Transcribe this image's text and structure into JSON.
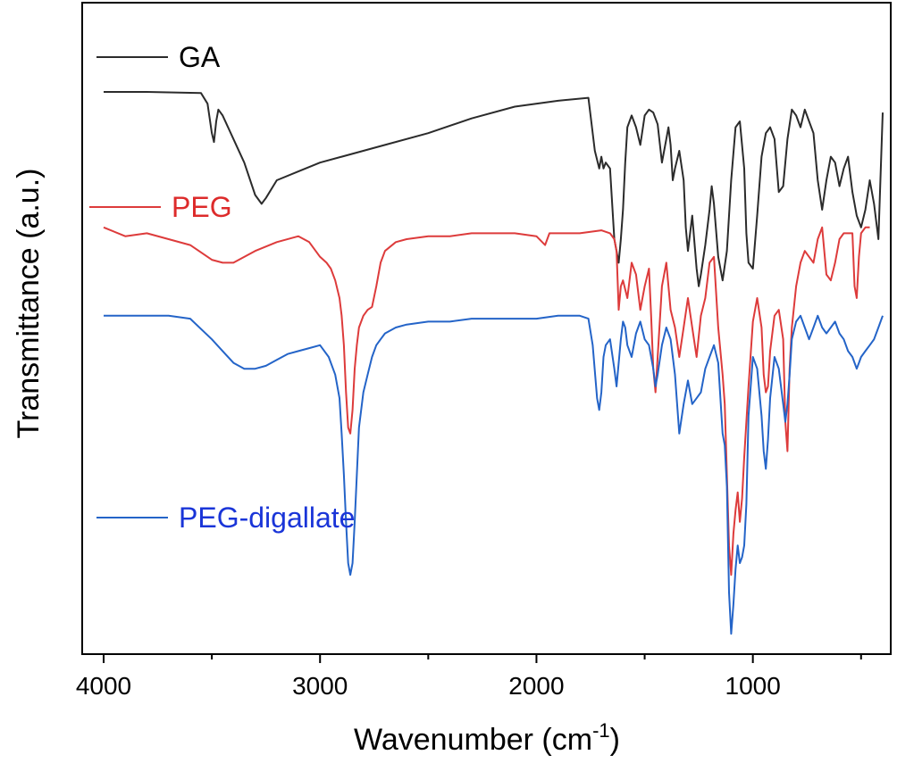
{
  "chart_data": {
    "type": "line",
    "title": "",
    "xlabel": "Wavenumber (cm",
    "xlabel_sup": "-1",
    "xlabel_close": ")",
    "ylabel": "Transmittance (a.u.)",
    "xlim": [
      4000,
      400
    ],
    "x_reversed": true,
    "ylim": [
      0,
      100
    ],
    "y_ticks_shown": false,
    "grid": false,
    "legend_placement": "inline-left",
    "x_ticks": [
      4000,
      3000,
      2000,
      1000
    ],
    "x_tick_labels": [
      "4000",
      "3000",
      "2000",
      "1000"
    ],
    "series": [
      {
        "name": "GA",
        "color": "#2b2b2b",
        "x": [
          4000,
          3800,
          3550,
          3520,
          3500,
          3490,
          3480,
          3470,
          3450,
          3400,
          3350,
          3300,
          3270,
          3250,
          3200,
          3100,
          3000,
          2900,
          2700,
          2500,
          2300,
          2100,
          1900,
          1760,
          1730,
          1710,
          1700,
          1690,
          1680,
          1660,
          1640,
          1620,
          1610,
          1600,
          1590,
          1580,
          1560,
          1540,
          1520,
          1500,
          1480,
          1460,
          1440,
          1420,
          1400,
          1390,
          1380,
          1370,
          1360,
          1340,
          1320,
          1310,
          1300,
          1280,
          1260,
          1250,
          1240,
          1220,
          1200,
          1190,
          1180,
          1160,
          1140,
          1120,
          1100,
          1080,
          1060,
          1040,
          1030,
          1020,
          1000,
          980,
          960,
          940,
          920,
          900,
          880,
          860,
          840,
          820,
          800,
          780,
          760,
          740,
          720,
          700,
          680,
          660,
          640,
          620,
          600,
          580,
          560,
          540,
          520,
          500,
          480,
          460,
          440,
          420,
          400
        ],
        "y": [
          95,
          95,
          94.8,
          93,
          88,
          86.5,
          90,
          92,
          91,
          87,
          83,
          77.5,
          76,
          77,
          80,
          81.5,
          83,
          84,
          86,
          88,
          90.5,
          92.5,
          93.5,
          94,
          85,
          82,
          84,
          82,
          83,
          82,
          70,
          66,
          70,
          75,
          83,
          89,
          91,
          89,
          86,
          91,
          92,
          91.5,
          89.5,
          83,
          87,
          89,
          86,
          80,
          82,
          85,
          80,
          72,
          68,
          74,
          65,
          62,
          64,
          69,
          75,
          79,
          76,
          67,
          63,
          68,
          80,
          89,
          90,
          82,
          71,
          66,
          65,
          74,
          84,
          88,
          89,
          87,
          78,
          79,
          87,
          92,
          91,
          89,
          92,
          90,
          88,
          80,
          75,
          80,
          84,
          83,
          79,
          82,
          84,
          78,
          74,
          72,
          75,
          80,
          76,
          70,
          91.5
        ]
      },
      {
        "name": "PEG",
        "color": "#dd3b3b",
        "x": [
          4000,
          3900,
          3800,
          3700,
          3600,
          3500,
          3450,
          3400,
          3300,
          3200,
          3100,
          3050,
          3000,
          2970,
          2950,
          2930,
          2910,
          2900,
          2890,
          2880,
          2870,
          2860,
          2850,
          2840,
          2830,
          2820,
          2800,
          2780,
          2760,
          2740,
          2720,
          2700,
          2650,
          2600,
          2500,
          2400,
          2300,
          2200,
          2100,
          2000,
          1960,
          1940,
          1900,
          1800,
          1700,
          1660,
          1640,
          1630,
          1620,
          1610,
          1600,
          1580,
          1560,
          1540,
          1520,
          1500,
          1480,
          1470,
          1460,
          1450,
          1440,
          1420,
          1400,
          1380,
          1360,
          1340,
          1320,
          1300,
          1280,
          1260,
          1240,
          1220,
          1200,
          1180,
          1160,
          1140,
          1130,
          1120,
          1110,
          1100,
          1090,
          1080,
          1070,
          1060,
          1050,
          1040,
          1020,
          1000,
          980,
          960,
          950,
          940,
          930,
          920,
          900,
          880,
          860,
          850,
          840,
          830,
          820,
          800,
          780,
          760,
          740,
          720,
          700,
          680,
          660,
          640,
          620,
          600,
          580,
          560,
          540,
          530,
          520,
          510,
          500,
          480,
          460
        ],
        "y": [
          72,
          70.5,
          71,
          70,
          69,
          66.5,
          66,
          66,
          68,
          69.5,
          70.5,
          69.5,
          67,
          66,
          65,
          63,
          60,
          57,
          52,
          44,
          38,
          37,
          41,
          48,
          52,
          55,
          57,
          58,
          58.5,
          62,
          66,
          68,
          69.5,
          70,
          70.5,
          70.5,
          71,
          71,
          71,
          70.5,
          69,
          71,
          71,
          71,
          71.5,
          71,
          70,
          68,
          58,
          62,
          63,
          60,
          66,
          64,
          58,
          62,
          65,
          57,
          48,
          44,
          50,
          62,
          66,
          58,
          55,
          50,
          55,
          60,
          55,
          50,
          57,
          60,
          66,
          67,
          55,
          47,
          42,
          30,
          18,
          13,
          20,
          24,
          27,
          22,
          26,
          33,
          45,
          56,
          60,
          55,
          47,
          44,
          45,
          51,
          57,
          58,
          53,
          39,
          34,
          48,
          55,
          62,
          66,
          68,
          67,
          66,
          70,
          72,
          64,
          63,
          66,
          70,
          71,
          71,
          71,
          62,
          60,
          67,
          71,
          72,
          72
        ]
      },
      {
        "name": "PEG-digallate",
        "color": "#2464c8",
        "x": [
          4000,
          3800,
          3700,
          3600,
          3500,
          3450,
          3400,
          3350,
          3300,
          3250,
          3200,
          3150,
          3100,
          3050,
          3000,
          2960,
          2930,
          2910,
          2900,
          2890,
          2880,
          2870,
          2860,
          2850,
          2840,
          2830,
          2820,
          2800,
          2780,
          2760,
          2740,
          2720,
          2700,
          2650,
          2600,
          2500,
          2400,
          2300,
          2200,
          2100,
          2000,
          1900,
          1800,
          1760,
          1740,
          1720,
          1710,
          1700,
          1690,
          1680,
          1660,
          1640,
          1630,
          1620,
          1610,
          1600,
          1590,
          1580,
          1560,
          1540,
          1520,
          1500,
          1480,
          1460,
          1450,
          1440,
          1420,
          1400,
          1380,
          1360,
          1340,
          1320,
          1300,
          1280,
          1260,
          1240,
          1220,
          1200,
          1180,
          1160,
          1140,
          1130,
          1120,
          1110,
          1100,
          1090,
          1080,
          1070,
          1060,
          1050,
          1040,
          1030,
          1020,
          1000,
          980,
          960,
          950,
          940,
          930,
          920,
          900,
          880,
          860,
          850,
          840,
          830,
          820,
          800,
          780,
          760,
          740,
          720,
          700,
          680,
          660,
          640,
          620,
          600,
          580,
          560,
          540,
          530,
          520,
          510,
          500,
          480,
          460,
          440,
          420,
          400
        ],
        "y": [
          57,
          57,
          57,
          56.5,
          53,
          51,
          49,
          48,
          48,
          48.5,
          49.5,
          50.5,
          51,
          51.5,
          52,
          50,
          47,
          43,
          37,
          30,
          22,
          15,
          13,
          15,
          22,
          30,
          38,
          44,
          47,
          50,
          52,
          53,
          54,
          55,
          55.5,
          56,
          56,
          56.5,
          56.5,
          56.5,
          56.5,
          57,
          57,
          56.5,
          52,
          43,
          41,
          44,
          50,
          52,
          53,
          48,
          45,
          49,
          53,
          56,
          55,
          52,
          50,
          54,
          56,
          53,
          52,
          48,
          45,
          47,
          52,
          55,
          53,
          47,
          37,
          42,
          46,
          42,
          43,
          44,
          48,
          50,
          52,
          49,
          37,
          35,
          28,
          10,
          3,
          8,
          14,
          18,
          15,
          16,
          18,
          25,
          40,
          50,
          48,
          40,
          34,
          31,
          36,
          43,
          50,
          48,
          42,
          39,
          42,
          47,
          53,
          56,
          57,
          55,
          53,
          55,
          57,
          55,
          54,
          55,
          56,
          54,
          53,
          51,
          50,
          49,
          48,
          49,
          50,
          51,
          52,
          53,
          55,
          57
        ]
      }
    ]
  }
}
